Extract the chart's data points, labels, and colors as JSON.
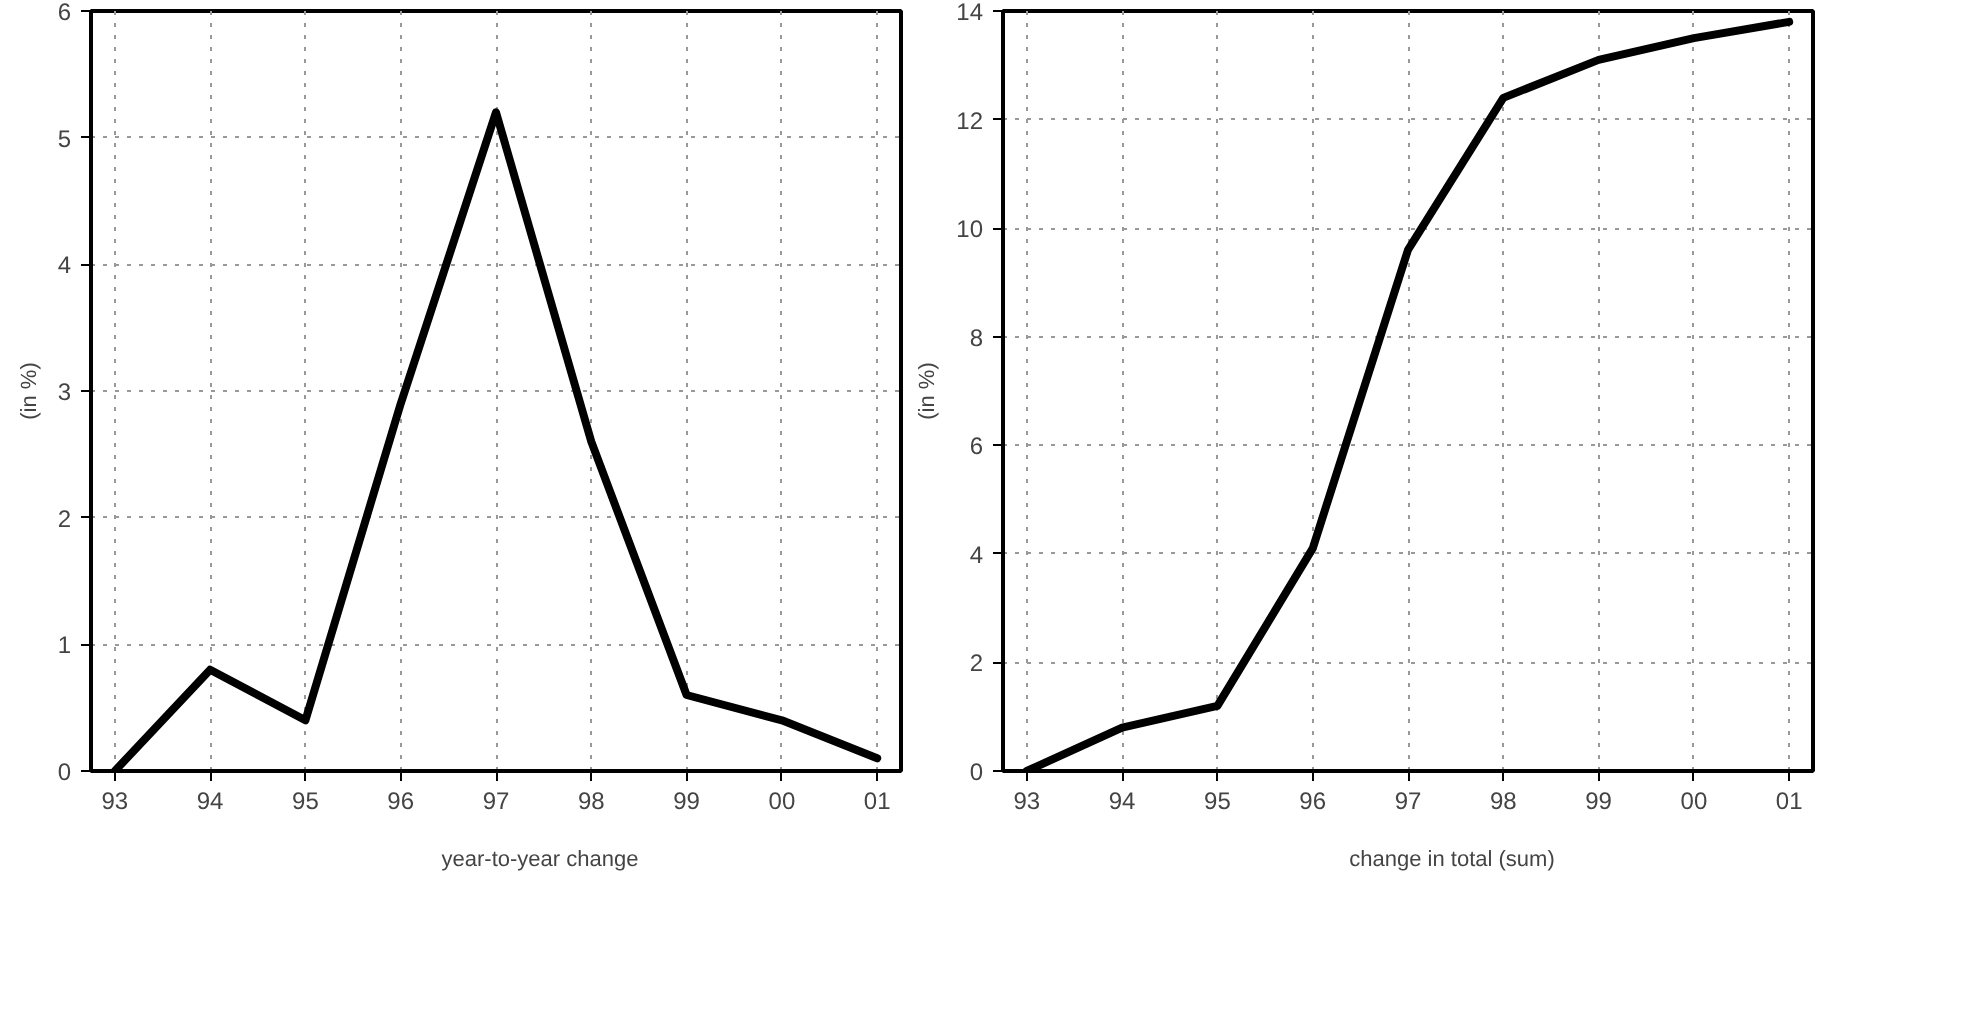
{
  "chart_data": [
    {
      "type": "line",
      "ylabel": "(in %)",
      "categories": [
        "93",
        "94",
        "95",
        "96",
        "97",
        "98",
        "99",
        "00",
        "01"
      ],
      "ylim": [
        0,
        6
      ],
      "yticks": [
        0,
        1,
        2,
        3,
        4,
        5,
        6
      ],
      "grid": true,
      "legend": "bottom",
      "line_style": "solid",
      "series": [
        {
          "name": "year-to-year change",
          "color": "#000000",
          "values": [
            0,
            0.8,
            0.4,
            2.9,
            5.2,
            2.6,
            0.6,
            0.4,
            0.1
          ]
        }
      ]
    },
    {
      "type": "line",
      "ylabel": "(in %)",
      "categories": [
        "93",
        "94",
        "95",
        "96",
        "97",
        "98",
        "99",
        "00",
        "01"
      ],
      "ylim": [
        0,
        14
      ],
      "yticks": [
        0,
        2,
        4,
        6,
        8,
        10,
        12,
        14
      ],
      "grid": true,
      "legend": "bottom",
      "line_style": "solid",
      "series": [
        {
          "name": "change in total (sum)",
          "color": "#000000",
          "values": [
            0,
            0.8,
            1.2,
            4.1,
            9.6,
            12.4,
            13.1,
            13.5,
            13.8
          ]
        }
      ]
    }
  ]
}
